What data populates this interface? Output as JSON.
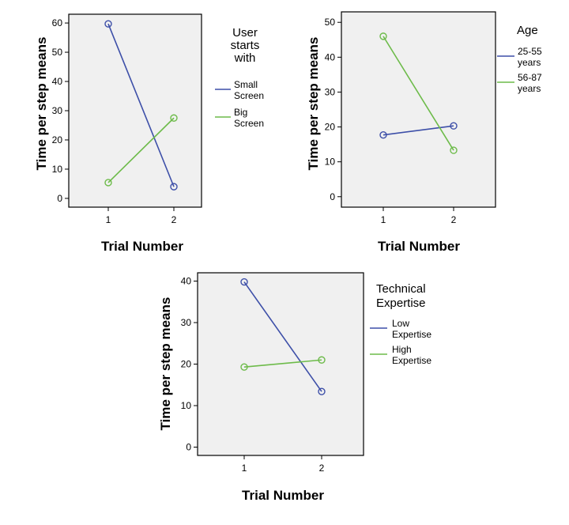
{
  "chart_data": [
    {
      "type": "line",
      "categories": [
        "1",
        "2"
      ],
      "xlabel": "Trial Number",
      "ylabel": "Time per step means",
      "ylim": [
        -3,
        63
      ],
      "yticks": [
        0,
        10,
        20,
        30,
        40,
        50,
        60
      ],
      "legend_title": [
        "User",
        "starts",
        "with"
      ],
      "series": [
        {
          "name": [
            "Small",
            "Screen"
          ],
          "color": "#3d4fa8",
          "values": [
            59.7,
            4.0
          ]
        },
        {
          "name": [
            "Big",
            "Screen"
          ],
          "color": "#6dbb4a",
          "values": [
            5.4,
            27.5
          ]
        }
      ]
    },
    {
      "type": "line",
      "categories": [
        "1",
        "2"
      ],
      "xlabel": "Trial Number",
      "ylabel": "Time per step means",
      "ylim": [
        -3,
        53
      ],
      "yticks": [
        0,
        10,
        20,
        30,
        40,
        50
      ],
      "legend_title": [
        "Age"
      ],
      "series": [
        {
          "name": [
            "25-55",
            "years"
          ],
          "color": "#3d4fa8",
          "values": [
            17.7,
            20.3
          ]
        },
        {
          "name": [
            "56-87",
            "years"
          ],
          "color": "#6dbb4a",
          "values": [
            46.0,
            13.3
          ]
        }
      ]
    },
    {
      "type": "line",
      "categories": [
        "1",
        "2"
      ],
      "xlabel": "Trial Number",
      "ylabel": "Time per step means",
      "ylim": [
        -2,
        42
      ],
      "yticks": [
        0,
        10,
        20,
        30,
        40
      ],
      "legend_title": [
        "Technical",
        "Expertise"
      ],
      "series": [
        {
          "name": [
            "Low",
            "Expertise"
          ],
          "color": "#3d4fa8",
          "values": [
            39.8,
            13.4
          ]
        },
        {
          "name": [
            "High",
            "Expertise"
          ],
          "color": "#6dbb4a",
          "values": [
            19.3,
            21.0
          ]
        }
      ]
    }
  ]
}
